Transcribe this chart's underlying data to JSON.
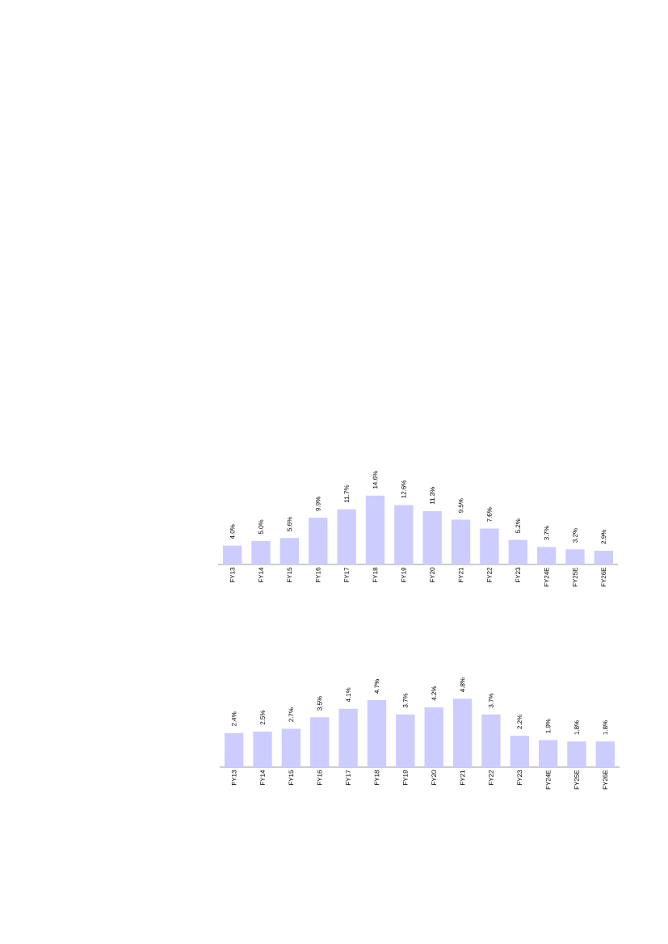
{
  "chart_data": [
    {
      "type": "bar",
      "categories": [
        "FY13",
        "FY14",
        "FY15",
        "FY16",
        "FY17",
        "FY18",
        "FY19",
        "FY20",
        "FY21",
        "FY22",
        "FY23",
        "FY24E",
        "FY25E",
        "FY26E"
      ],
      "values": [
        4.0,
        5.0,
        5.6,
        9.9,
        11.7,
        14.6,
        12.6,
        11.3,
        9.5,
        7.6,
        5.2,
        3.7,
        3.2,
        2.9
      ],
      "value_labels": [
        "4.0%",
        "5.0%",
        "5.6%",
        "9.9%",
        "11.7%",
        "14.6%",
        "12.6%",
        "11.3%",
        "9.5%",
        "7.6%",
        "5.2%",
        "3.7%",
        "3.2%",
        "2.9%"
      ],
      "color": "#ccccff",
      "tick_labels": "x"
    },
    {
      "type": "bar",
      "categories": [
        "FY13",
        "FY14",
        "FY15",
        "FY16",
        "FY17",
        "FY18",
        "FY19",
        "FY20",
        "FY21",
        "FY22",
        "FY23",
        "FY24E",
        "FY25E",
        "FY26E"
      ],
      "values": [
        2.4,
        2.5,
        2.7,
        3.5,
        4.1,
        4.7,
        3.7,
        4.2,
        4.8,
        3.7,
        2.2,
        1.9,
        1.8,
        1.8
      ],
      "value_labels": [
        "2.4%",
        "2.5%",
        "2.7%",
        "3.5%",
        "4.1%",
        "4.7%",
        "3.7%",
        "4.2%",
        "4.8%",
        "3.7%",
        "2.2%",
        "1.9%",
        "1.8%",
        "1.8%"
      ],
      "color": "#ccccff",
      "tick_labels": "x"
    }
  ]
}
